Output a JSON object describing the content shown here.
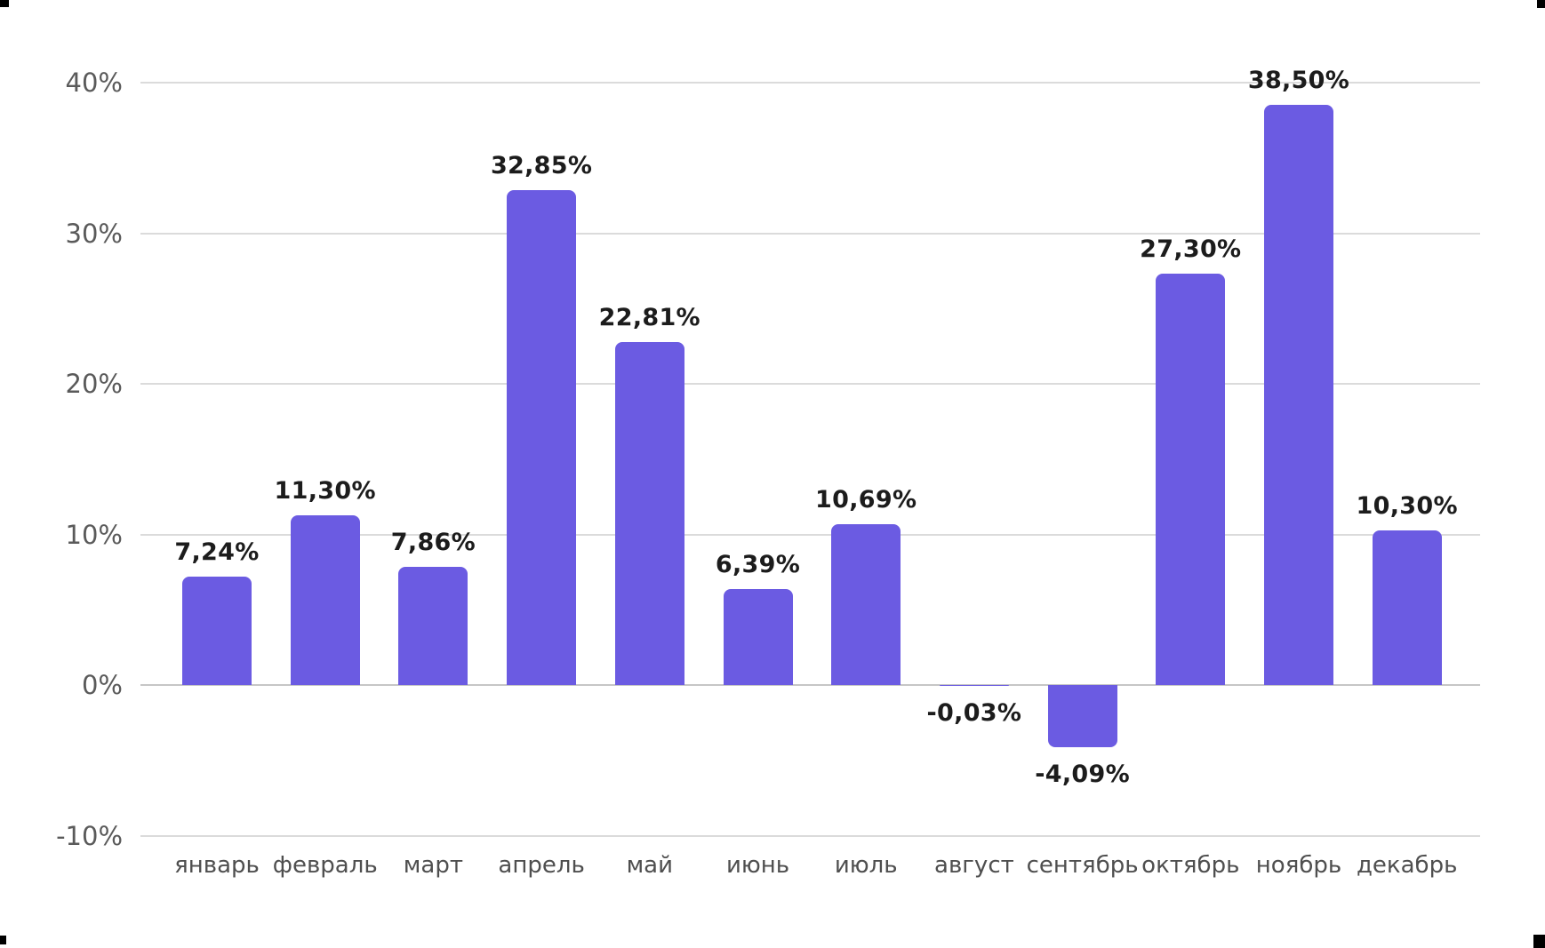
{
  "chart_data": {
    "type": "bar",
    "title": "",
    "xlabel": "",
    "ylabel": "",
    "categories": [
      "январь",
      "февраль",
      "март",
      "апрель",
      "май",
      "июнь",
      "июль",
      "август",
      "сентябрь",
      "октябрь",
      "ноябрь",
      "декабрь"
    ],
    "values": [
      7.24,
      11.3,
      7.86,
      32.85,
      22.81,
      6.39,
      10.69,
      -0.03,
      -4.09,
      27.3,
      38.5,
      10.3
    ],
    "value_labels": [
      "7,24%",
      "11,30%",
      "7,86%",
      "32,85%",
      "22,81%",
      "6,39%",
      "10,69%",
      "-0,03%",
      "-4,09%",
      "27,30%",
      "38,50%",
      "10,30%"
    ],
    "y_ticks": [
      {
        "value": 40,
        "label": "40%"
      },
      {
        "value": 30,
        "label": "30%"
      },
      {
        "value": 20,
        "label": "20%"
      },
      {
        "value": 10,
        "label": "10%"
      },
      {
        "value": 0,
        "label": "0%"
      },
      {
        "value": -10,
        "label": "-10%"
      }
    ],
    "ylim": [
      -10,
      40
    ],
    "grid": true,
    "legend": false,
    "colors": {
      "bar": "#6B5BE2",
      "gridline": "#DBDBDB",
      "zero_line": "#C6C6C6",
      "value_label": "#1C1C1C",
      "y_tick_label": "#5A5A5A",
      "x_tick_label": "#4F4F4F",
      "background": "#FFFFFF",
      "corner_mark": "#000000"
    }
  }
}
